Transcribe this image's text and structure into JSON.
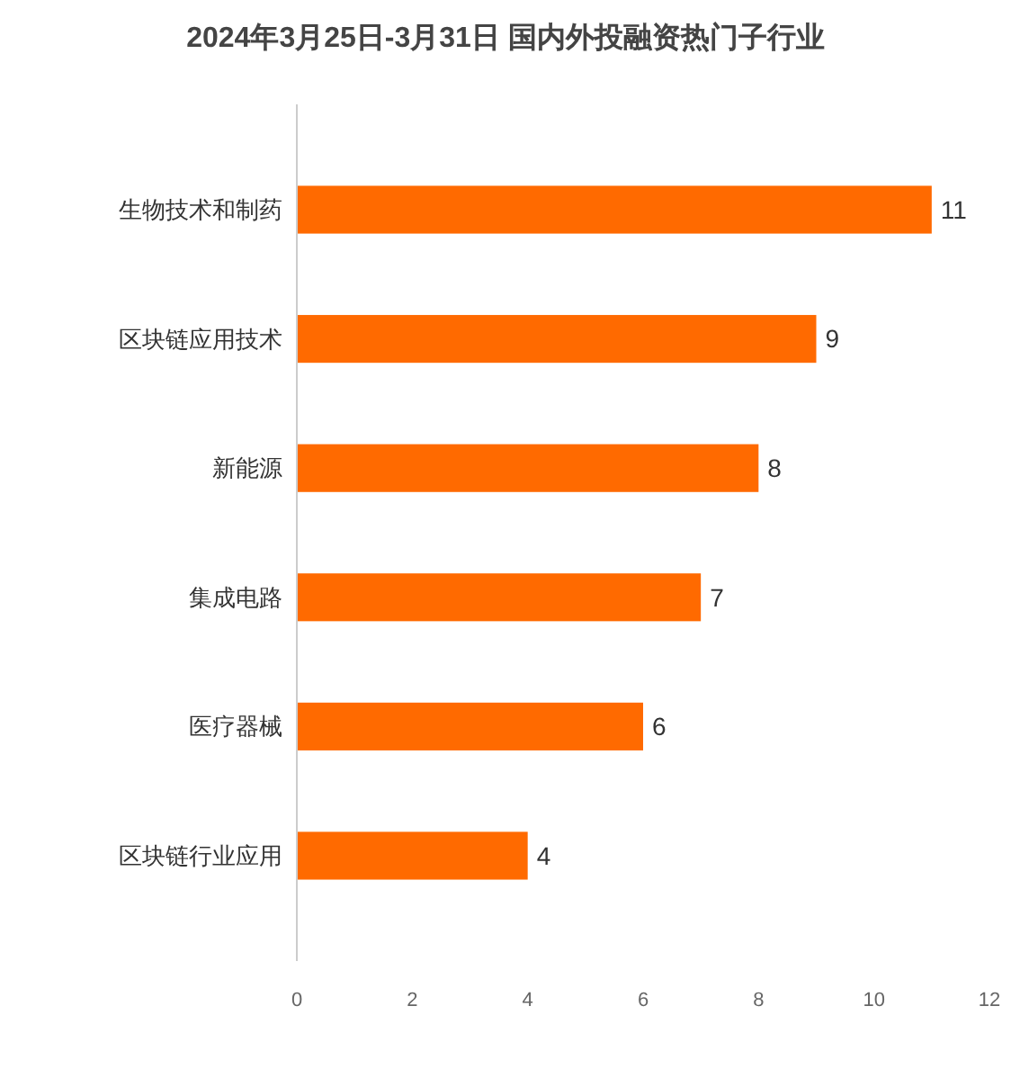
{
  "chart_data": {
    "type": "bar",
    "orientation": "horizontal",
    "title": "2024年3月25日-3月31日 国内外投融资热门子行业",
    "categories": [
      "生物技术和制药",
      "区块链应用技术",
      "新能源",
      "集成电路",
      "医疗器械",
      "区块链行业应用"
    ],
    "values": [
      11,
      9,
      8,
      7,
      6,
      4
    ],
    "color": "#ff6a00",
    "xlim": [
      0,
      12
    ],
    "xticks": [
      0,
      2,
      4,
      6,
      8,
      10,
      12
    ],
    "grid": false,
    "data_labels": true
  }
}
